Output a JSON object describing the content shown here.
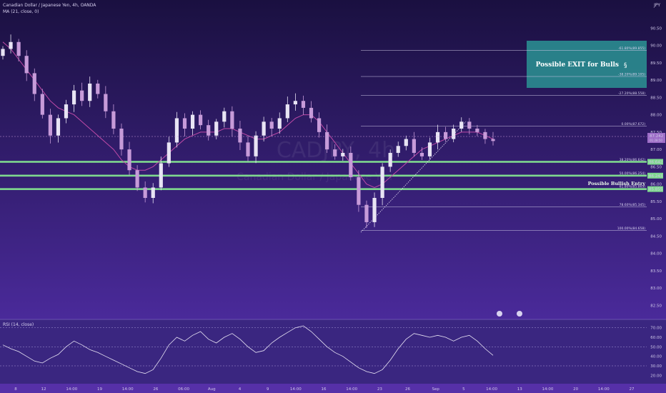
{
  "header": {
    "title": "Canadian Dollar / Japanese Yen, 4h, OANDA",
    "indicator": "MA (21, close, 0)",
    "currency": "JPY"
  },
  "watermark": {
    "symbol": "CADJPY, 4h",
    "name": "Canadian Dollar / Japanese Yen"
  },
  "colors": {
    "bg_top": "#1a1040",
    "bg_bottom": "#4a2a9a",
    "candle": "#e8e4f4",
    "candle_down": "#c79bd9",
    "ma": "#c04aa8",
    "support": "#7fd98f",
    "exit_box": "#2a8a8e",
    "price_line": "#c79bd9"
  },
  "chart_data": [
    {
      "type": "candlestick",
      "title": "Canadian Dollar / Japanese Yen, 4h, OANDA",
      "x_tick_labels": [
        "8",
        "12",
        "14:00",
        "19",
        "14:00",
        "26",
        "06:00",
        "Aug",
        "4",
        "9",
        "14:00",
        "16",
        "14:00",
        "23",
        "26",
        "Sep",
        "5",
        "14:00",
        "13",
        "14:00",
        "20",
        "14:00",
        "27"
      ],
      "y_tick_labels": [
        "90.50",
        "90.00",
        "89.50",
        "89.00",
        "88.50",
        "88.00",
        "87.50",
        "87.00",
        "86.50",
        "86.00",
        "85.50",
        "85.00",
        "84.50",
        "84.00",
        "83.50",
        "83.00",
        "82.50"
      ],
      "ylim": [
        82.3,
        90.9
      ],
      "series": [
        {
          "name": "CADJPY",
          "close": [
            89.9,
            90.1,
            89.7,
            89.2,
            88.6,
            88.0,
            87.4,
            87.9,
            88.3,
            88.7,
            88.4,
            88.9,
            88.6,
            88.1,
            87.6,
            87.0,
            86.4,
            85.9,
            85.6,
            85.9,
            86.6,
            87.2,
            87.9,
            87.6,
            88.0,
            87.7,
            87.4,
            87.8,
            88.1,
            87.6,
            87.2,
            86.8,
            87.4,
            87.8,
            87.6,
            87.9,
            88.3,
            88.4,
            88.2,
            87.9,
            87.5,
            87.0,
            86.8,
            86.9,
            86.2,
            85.4,
            84.9,
            85.6,
            86.5,
            86.9,
            87.1,
            87.3,
            86.9,
            86.8,
            87.2,
            87.5,
            87.3,
            87.6,
            87.8,
            87.6,
            87.5,
            87.3,
            87.242
          ]
        },
        {
          "name": "MA (21, close, 0)",
          "close": [
            90.1,
            89.9,
            89.6,
            89.3,
            89.0,
            88.7,
            88.4,
            88.2,
            88.1,
            88.0,
            87.8,
            87.6,
            87.4,
            87.2,
            87.0,
            86.7,
            86.5,
            86.4,
            86.4,
            86.5,
            86.7,
            86.9,
            87.1,
            87.3,
            87.4,
            87.5,
            87.5,
            87.5,
            87.6,
            87.6,
            87.5,
            87.4,
            87.3,
            87.3,
            87.4,
            87.5,
            87.7,
            87.9,
            88.0,
            88.0,
            87.8,
            87.5,
            87.2,
            86.9,
            86.6,
            86.3,
            86.0,
            85.9,
            86.0,
            86.2,
            86.4,
            86.6,
            86.8,
            87.0,
            87.1,
            87.2,
            87.3,
            87.4,
            87.5,
            87.5,
            87.5,
            87.4,
            87.3
          ]
        }
      ],
      "current_price": "87.242",
      "current_price_sub": "01:28:50",
      "horizontal_levels": [
        {
          "name": "level-1",
          "value": 86.642,
          "label": "86.642"
        },
        {
          "name": "level-2",
          "value": 86.243,
          "label": "86.243"
        },
        {
          "name": "level-3",
          "value": 85.855,
          "label": "85.855"
        }
      ],
      "fibonacci": {
        "levels": [
          {
            "ratio": "-61.80%",
            "value": 89.855,
            "label": "-61.80%(89.855)"
          },
          {
            "ratio": "-38.20%",
            "value": 89.105,
            "label": "-38.20%(89.105)"
          },
          {
            "ratio": "-27.20%",
            "value": 88.558,
            "label": "-27.20%(88.558)"
          },
          {
            "ratio": "0.00%",
            "value": 87.672,
            "label": "0.00%(87.672)"
          },
          {
            "ratio": "38.20%",
            "value": 86.642,
            "label": "38.20%(86.642)"
          },
          {
            "ratio": "50.00%",
            "value": 86.254,
            "label": "50.00%(86.254)"
          },
          {
            "ratio": "61.80%",
            "value": 85.865,
            "label": "61.80%(85.865)"
          },
          {
            "ratio": "78.60%",
            "value": 85.345,
            "label": "78.60%(85.345)"
          },
          {
            "ratio": "100.00%",
            "value": 84.658,
            "label": "100.00%(84.658)"
          }
        ]
      },
      "annotations": [
        {
          "name": "exit-zone",
          "text": "Possible EXIT for Bulls"
        },
        {
          "name": "entry-zone",
          "text": "Possible Bullish Entry"
        }
      ]
    },
    {
      "type": "line",
      "title": "RSI (14, close)",
      "y_tick_labels": [
        "70.00",
        "60.00",
        "50.00",
        "40.00",
        "30.00",
        "20.00"
      ],
      "ylim": [
        15,
        75
      ],
      "bands": [
        70,
        50,
        30
      ],
      "series": [
        {
          "name": "RSI (14, close)",
          "values": [
            52,
            48,
            45,
            40,
            35,
            33,
            38,
            42,
            50,
            56,
            52,
            47,
            44,
            40,
            36,
            32,
            28,
            24,
            22,
            26,
            38,
            52,
            60,
            56,
            62,
            66,
            58,
            54,
            60,
            64,
            58,
            50,
            44,
            46,
            54,
            60,
            65,
            70,
            72,
            66,
            58,
            50,
            44,
            40,
            34,
            28,
            24,
            22,
            26,
            36,
            48,
            58,
            64,
            62,
            60,
            62,
            60,
            56,
            60,
            62,
            56,
            48,
            41
          ]
        }
      ]
    }
  ]
}
